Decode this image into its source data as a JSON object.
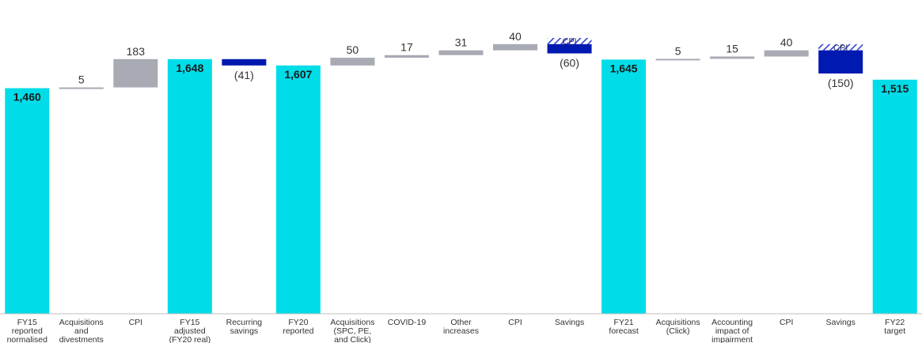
{
  "chart_data": {
    "type": "bar",
    "subtype": "waterfall",
    "title": "",
    "xlabel": "",
    "ylabel": "",
    "grid": false,
    "legend": "none",
    "colors": {
      "total": "#00DDE8",
      "increase": "#A8AAB4",
      "savings": "#0019B0",
      "cpi_hatch": "#3344CC",
      "axis": "#BFBFBF"
    },
    "bars": [
      {
        "category": [
          "FY15",
          "reported",
          "normalised"
        ],
        "kind": "total",
        "value": 1460,
        "label": "1,460"
      },
      {
        "category": [
          "Acquisitions",
          "and",
          "divestments"
        ],
        "kind": "increase",
        "value": 5,
        "label": "5"
      },
      {
        "category": [
          "CPI"
        ],
        "kind": "increase",
        "value": 183,
        "label": "183"
      },
      {
        "category": [
          "FY15",
          "adjusted",
          "(FY20 real)"
        ],
        "kind": "total",
        "value": 1648,
        "label": "1,648"
      },
      {
        "category": [
          "Recurring",
          "savings"
        ],
        "kind": "savings",
        "value": -41,
        "label": "(41)"
      },
      {
        "category": [
          "FY20",
          "reported"
        ],
        "kind": "total",
        "value": 1607,
        "label": "1,607"
      },
      {
        "category": [
          "Acquisitions",
          "(SPC, PE,",
          "and Click)"
        ],
        "kind": "increase",
        "value": 50,
        "label": "50"
      },
      {
        "category": [
          "COVID-19"
        ],
        "kind": "increase",
        "value": 17,
        "label": "17"
      },
      {
        "category": [
          "Other",
          "increases"
        ],
        "kind": "increase",
        "value": 31,
        "label": "31"
      },
      {
        "category": [
          "CPI"
        ],
        "kind": "increase",
        "value": 40,
        "label": "40"
      },
      {
        "category": [
          "Savings"
        ],
        "kind": "savings",
        "value": -60,
        "label": "(60)",
        "cpi_portion": 40,
        "cpi_label": "CPI"
      },
      {
        "category": [
          "FY21",
          "forecast"
        ],
        "kind": "total",
        "value": 1645,
        "label": "1,645"
      },
      {
        "category": [
          "Acquisitions",
          "(Click)"
        ],
        "kind": "increase",
        "value": 5,
        "label": "5"
      },
      {
        "category": [
          "Accounting",
          "impact of",
          "impairment"
        ],
        "kind": "increase",
        "value": 15,
        "label": "15"
      },
      {
        "category": [
          "CPI"
        ],
        "kind": "increase",
        "value": 40,
        "label": "40"
      },
      {
        "category": [
          "Savings"
        ],
        "kind": "savings",
        "value": -150,
        "label": "(150)",
        "cpi_portion": 40,
        "cpi_label": "CPI"
      },
      {
        "category": [
          "FY22",
          "target"
        ],
        "kind": "total",
        "value": 1515,
        "label": "1,515"
      }
    ]
  }
}
